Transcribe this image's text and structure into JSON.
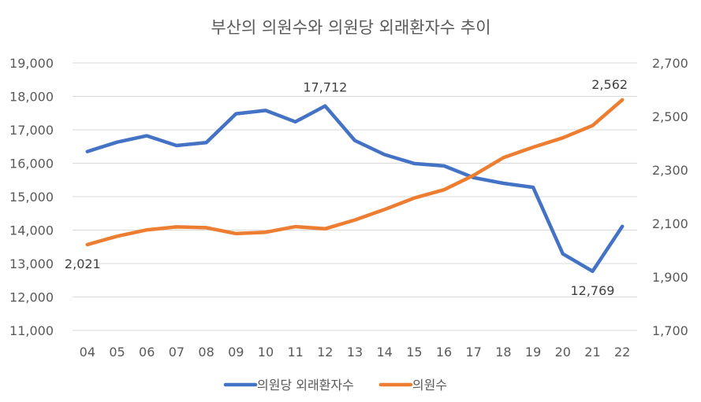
{
  "chart_data": {
    "type": "line",
    "title": "부산의 의원수와 의원당 외래환자수 추이",
    "categories": [
      "04",
      "05",
      "06",
      "07",
      "08",
      "09",
      "10",
      "11",
      "12",
      "13",
      "14",
      "15",
      "16",
      "17",
      "18",
      "19",
      "20",
      "21",
      "22"
    ],
    "y_left": {
      "min": 11000,
      "max": 19000,
      "step": 1000,
      "tick_labels": [
        "11,000",
        "12,000",
        "13,000",
        "14,000",
        "15,000",
        "16,000",
        "17,000",
        "18,000",
        "19,000"
      ]
    },
    "y_right": {
      "min": 1700,
      "max": 2700,
      "step": 200,
      "tick_labels": [
        "1,700",
        "1,900",
        "2,100",
        "2,300",
        "2,500",
        "2,700"
      ]
    },
    "grid": true,
    "legend_position": "bottom",
    "series": [
      {
        "name": "의원당 외래환자수",
        "axis": "left",
        "color": "#4472C4",
        "values": [
          16350,
          16630,
          16820,
          16530,
          16620,
          17480,
          17580,
          17240,
          17712,
          16680,
          16260,
          15990,
          15920,
          15570,
          15400,
          15280,
          13290,
          12769,
          14110
        ],
        "annotations": [
          {
            "index": 8,
            "label": "17,712",
            "position": "above"
          },
          {
            "index": 17,
            "label": "12,769",
            "position": "below"
          }
        ]
      },
      {
        "name": "의원수",
        "axis": "right",
        "color": "#ED7D31",
        "values": [
          2021,
          2052,
          2076,
          2087,
          2084,
          2062,
          2067,
          2088,
          2080,
          2113,
          2152,
          2195,
          2226,
          2280,
          2346,
          2385,
          2420,
          2466,
          2562
        ],
        "annotations": [
          {
            "index": 0,
            "label": "2,021",
            "position": "below"
          },
          {
            "index": 18,
            "label": "2,562",
            "position": "above"
          }
        ]
      }
    ]
  }
}
